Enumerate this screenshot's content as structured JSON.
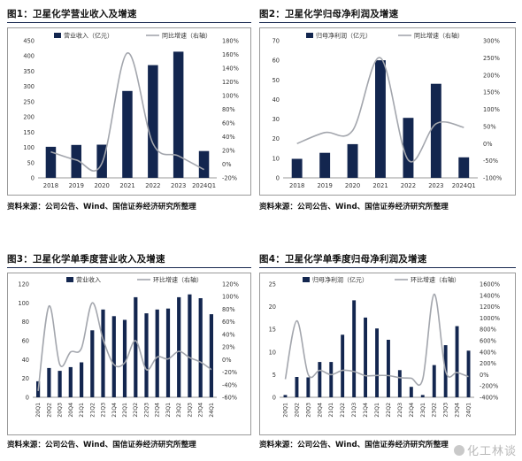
{
  "colors": {
    "bar": "#13264f",
    "line": "#a3a6ad",
    "axis": "#999999",
    "text": "#333333"
  },
  "panels": [
    {
      "title": "图1：卫星化学营业收入及增速",
      "source": "资料来源：公司公告、Wind、国信证券经济研究所整理",
      "legend": {
        "bar": "营业收入（亿元）",
        "line": "同比增速（右轴）"
      }
    },
    {
      "title": "图2：卫星化学归母净利润及增速",
      "source": "资料来源：公司公告、Wind、国信证券经济研究所整理",
      "legend": {
        "bar": "归母净利润（亿元）",
        "line": "同比增速（右轴）"
      }
    },
    {
      "title": "图3：卫星化学单季度营业收入及增速",
      "source": "资料来源：公司公告、Wind、国信证券经济研究所整理",
      "legend": {
        "bar": "营业收入",
        "line": "环比增速（右轴）"
      }
    },
    {
      "title": "图4：卫星化学单季度归母净利润及增速",
      "source": "资料来源：公司公告、Wind、国信证券经济研究所整理",
      "legend": {
        "bar": "归母净利润（亿元）",
        "line": "环比增速（右轴）"
      }
    }
  ],
  "watermark": "化工林谈",
  "chart_data": [
    {
      "type": "bar",
      "categories": [
        "2018",
        "2019",
        "2020",
        "2021",
        "2022",
        "2023",
        "2024Q1"
      ],
      "series": [
        {
          "name": "营业收入（亿元）",
          "type": "bar",
          "axis": "left",
          "values": [
            102,
            108,
            109,
            285,
            370,
            414,
            88
          ]
        },
        {
          "name": "同比增速（右轴）",
          "type": "line",
          "axis": "right",
          "values": [
            18,
            6,
            1,
            162,
            30,
            12,
            -8
          ]
        }
      ],
      "ylim": [
        0,
        450
      ],
      "yticks": [
        0,
        50,
        100,
        150,
        200,
        250,
        300,
        350,
        400,
        450
      ],
      "y2lim": [
        -20,
        180
      ],
      "y2ticks": [
        -20,
        0,
        20,
        40,
        60,
        80,
        100,
        120,
        140,
        160,
        180
      ],
      "y2unit": "%"
    },
    {
      "type": "bar",
      "categories": [
        "2018",
        "2019",
        "2020",
        "2021",
        "2022",
        "2023",
        "2024Q1"
      ],
      "series": [
        {
          "name": "归母净利润（亿元）",
          "type": "bar",
          "axis": "left",
          "values": [
            9.7,
            12.8,
            17.2,
            60.0,
            30.6,
            48.0,
            10.5
          ]
        },
        {
          "name": "同比增速（右轴）",
          "type": "line",
          "axis": "right",
          "values": [
            0,
            32,
            38,
            250,
            -48,
            58,
            47
          ]
        }
      ],
      "ylim": [
        0,
        70
      ],
      "yticks": [
        0,
        10,
        20,
        30,
        40,
        50,
        60,
        70
      ],
      "y2lim": [
        -100,
        300
      ],
      "y2ticks": [
        -100,
        -50,
        0,
        50,
        100,
        150,
        200,
        250,
        300
      ],
      "y2unit": "%"
    },
    {
      "type": "bar",
      "categories": [
        "20Q1",
        "20Q2",
        "20Q3",
        "20Q4",
        "21Q1",
        "21Q2",
        "21Q3",
        "21Q4",
        "22Q1",
        "22Q2",
        "22Q3",
        "22Q4",
        "23Q1",
        "23Q2",
        "23Q3",
        "23Q4",
        "24Q1"
      ],
      "series": [
        {
          "name": "营业收入",
          "type": "bar",
          "axis": "left",
          "values": [
            17,
            31,
            28,
            32,
            37,
            71,
            93,
            86,
            82,
            106,
            89,
            93,
            94,
            106,
            109,
            105,
            88
          ]
        },
        {
          "name": "环比增速（右轴）",
          "type": "line",
          "axis": "right",
          "values": [
            -50,
            85,
            -8,
            12,
            18,
            90,
            32,
            -8,
            -5,
            30,
            -16,
            4,
            1,
            13,
            3,
            -4,
            -16
          ]
        }
      ],
      "ylim": [
        0,
        120
      ],
      "yticks": [
        0,
        20,
        40,
        60,
        80,
        100,
        120
      ],
      "y2lim": [
        -60,
        120
      ],
      "y2ticks": [
        -60,
        -40,
        -20,
        0,
        20,
        40,
        60,
        80,
        100,
        120
      ],
      "y2unit": "%"
    },
    {
      "type": "bar",
      "categories": [
        "20Q1",
        "20Q2",
        "20Q3",
        "20Q4",
        "21Q1",
        "21Q2",
        "21Q3",
        "21Q4",
        "22Q1",
        "22Q2",
        "22Q3",
        "22Q4",
        "23Q1",
        "23Q2",
        "23Q3",
        "23Q4",
        "24Q1"
      ],
      "series": [
        {
          "name": "归母净利润（亿元）",
          "type": "bar",
          "axis": "left",
          "values": [
            0.5,
            4.5,
            4.4,
            7.8,
            7.8,
            13.8,
            21.4,
            17.6,
            15.2,
            12.7,
            6.0,
            2.3,
            0.5,
            7.1,
            11.5,
            15.7,
            10.3
          ]
        },
        {
          "name": "环比增速（右轴）",
          "type": "line",
          "axis": "right",
          "values": [
            -80,
            950,
            0,
            75,
            0,
            75,
            55,
            -18,
            -14,
            -17,
            -53,
            -62,
            -80,
            1420,
            62,
            37,
            -35
          ]
        }
      ],
      "ylim": [
        0,
        25
      ],
      "yticks": [
        0,
        5,
        10,
        15,
        20,
        25
      ],
      "y2lim": [
        -400,
        1600
      ],
      "y2ticks": [
        -400,
        -200,
        0,
        200,
        400,
        600,
        800,
        1000,
        1200,
        1400,
        1600
      ],
      "y2unit": "%"
    }
  ]
}
